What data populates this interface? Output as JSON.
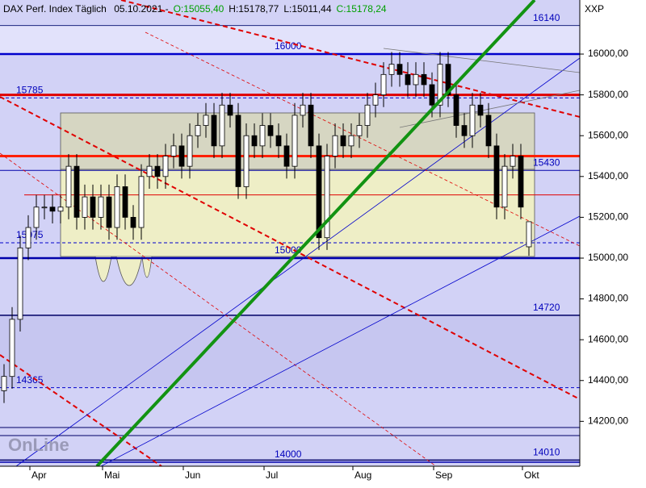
{
  "chart_data": {
    "type": "candlestick",
    "header": {
      "title": "DAX Perf. Index Täglich",
      "date": "05.10.2021 -",
      "ohlc": [
        {
          "text": "O:15055,40",
          "color": "#00a000"
        },
        {
          "text": "H:15178,77",
          "color": "#000000"
        },
        {
          "text": "L:15011,44",
          "color": "#000000"
        },
        {
          "text": "C:15178,24",
          "color": "#00a000"
        }
      ]
    },
    "corner_label": "XXP",
    "logo": "OnLine",
    "categories": [
      null,
      null,
      null,
      null,
      "Apr",
      null,
      null,
      null,
      null,
      null,
      null,
      null,
      null,
      "Mai",
      null,
      null,
      null,
      null,
      null,
      null,
      null,
      null,
      null,
      "Jun",
      null,
      null,
      null,
      null,
      null,
      null,
      null,
      null,
      null,
      "Jul",
      null,
      null,
      null,
      null,
      null,
      null,
      null,
      null,
      null,
      null,
      "Aug",
      null,
      null,
      null,
      null,
      null,
      null,
      null,
      null,
      null,
      "Sep",
      null,
      null,
      null,
      null,
      null,
      null,
      null,
      null,
      null,
      null,
      "Okt"
    ],
    "open": [
      14350,
      14420,
      14700,
      15050,
      15150,
      15250,
      15250,
      15230,
      15250,
      15450,
      15200,
      15300,
      15200,
      15300,
      15150,
      15350,
      15200,
      15150,
      15400,
      15450,
      15400,
      15500,
      15550,
      15450,
      15600,
      15650,
      15700,
      15550,
      15750,
      15700,
      15350,
      15600,
      15550,
      15650,
      15600,
      15550,
      15450,
      15700,
      15750,
      15550,
      15100,
      15500,
      15600,
      15550,
      15600,
      15650,
      15750,
      15800,
      15900,
      15950,
      15900,
      15850,
      15900,
      15850,
      15750,
      15950,
      15800,
      15650,
      15600,
      15750,
      15700,
      15550,
      15250,
      15450,
      15500,
      15055.4
    ],
    "high": [
      14480,
      14760,
      15110,
      15210,
      15310,
      15310,
      15310,
      15310,
      15510,
      15510,
      15360,
      15360,
      15360,
      15360,
      15410,
      15410,
      15260,
      15460,
      15510,
      15510,
      15560,
      15610,
      15610,
      15660,
      15710,
      15760,
      15760,
      15810,
      15810,
      15760,
      15660,
      15660,
      15710,
      15710,
      15660,
      15610,
      15760,
      15810,
      15810,
      15610,
      15560,
      15660,
      15660,
      15660,
      15710,
      15810,
      15860,
      15960,
      16010,
      16010,
      15960,
      15960,
      15960,
      15910,
      16010,
      16010,
      15860,
      15710,
      15810,
      15810,
      15760,
      15610,
      15510,
      15560,
      15560,
      15178.77
    ],
    "low": [
      14290,
      14360,
      14640,
      14990,
      15090,
      15190,
      15170,
      15170,
      15190,
      15140,
      15140,
      15140,
      15140,
      15090,
      15090,
      15140,
      15090,
      15090,
      15340,
      15340,
      15340,
      15440,
      15390,
      15390,
      15540,
      15590,
      15490,
      15490,
      15640,
      15290,
      15290,
      15490,
      15490,
      15540,
      15490,
      15390,
      15390,
      15640,
      15490,
      15040,
      15040,
      15440,
      15490,
      15490,
      15540,
      15590,
      15690,
      15740,
      15840,
      15840,
      15790,
      15790,
      15790,
      15690,
      15690,
      15740,
      15590,
      15540,
      15540,
      15640,
      15490,
      15190,
      15190,
      15390,
      15190,
      15011.44
    ],
    "close": [
      14420,
      14700,
      15050,
      15150,
      15250,
      15250,
      15230,
      15250,
      15450,
      15200,
      15300,
      15200,
      15300,
      15150,
      15350,
      15200,
      15150,
      15400,
      15450,
      15400,
      15500,
      15550,
      15450,
      15600,
      15650,
      15700,
      15550,
      15750,
      15700,
      15350,
      15600,
      15550,
      15650,
      15600,
      15550,
      15450,
      15700,
      15750,
      15550,
      15100,
      15500,
      15600,
      15550,
      15600,
      15650,
      15750,
      15800,
      15900,
      15950,
      15900,
      15850,
      15900,
      15850,
      15750,
      15950,
      15800,
      15650,
      15600,
      15750,
      15700,
      15550,
      15250,
      15450,
      15500,
      15250,
      15178.24
    ],
    "up_color": "#ffffff",
    "down_color": "#000000",
    "ylim": [
      13980,
      16265
    ],
    "yticks": [
      {
        "value": 14200,
        "label": "14200,00"
      },
      {
        "value": 14400,
        "label": "14400,00"
      },
      {
        "value": 14600,
        "label": "14600,00"
      },
      {
        "value": 14800,
        "label": "14800,00"
      },
      {
        "value": 15000,
        "label": "15000,00"
      },
      {
        "value": 15200,
        "label": "15200,00"
      },
      {
        "value": 15400,
        "label": "15400,00"
      },
      {
        "value": 15600,
        "label": "15600,00"
      },
      {
        "value": 15800,
        "label": "15800,00"
      },
      {
        "value": 16000,
        "label": "16000,00"
      }
    ],
    "levels": [
      {
        "value": 16140,
        "label_pos": "right",
        "color": "#1a237e",
        "width": 1
      },
      {
        "value": 16000,
        "label_pos": "center",
        "color": "#0000cc",
        "width": 2.5
      },
      {
        "value": 15785,
        "label_pos": "left",
        "color": "#0000cc",
        "width": 1,
        "dashed": true
      },
      {
        "value": 15800,
        "color": "#e00000",
        "width": 3
      },
      {
        "value": 15500,
        "color": "#ff2000",
        "width": 3
      },
      {
        "value": 15430,
        "label_pos": "right",
        "color": "#0000aa",
        "width": 1
      },
      {
        "value": 15310,
        "color": "#e00000",
        "width": 1
      },
      {
        "value": 15075,
        "label_pos": "left",
        "color": "#0000cc",
        "width": 1,
        "dashed": true
      },
      {
        "value": 15000,
        "label_pos": "center",
        "color": "#0000aa",
        "width": 2.5
      },
      {
        "value": 14720,
        "label_pos": "right",
        "color": "#000066",
        "width": 1.5
      },
      {
        "value": 14365,
        "label_pos": "left",
        "color": "#0000cc",
        "width": 1,
        "dashed": true
      },
      {
        "value": 14170,
        "color": "#000066",
        "width": 1
      },
      {
        "value": 14130,
        "color": "#000066",
        "width": 1
      },
      {
        "value": 14010,
        "label_pos": "right",
        "color": "#000066",
        "width": 1.5
      },
      {
        "value": 14000,
        "label_pos": "center",
        "color": "#0000aa",
        "width": 1.5
      }
    ]
  }
}
